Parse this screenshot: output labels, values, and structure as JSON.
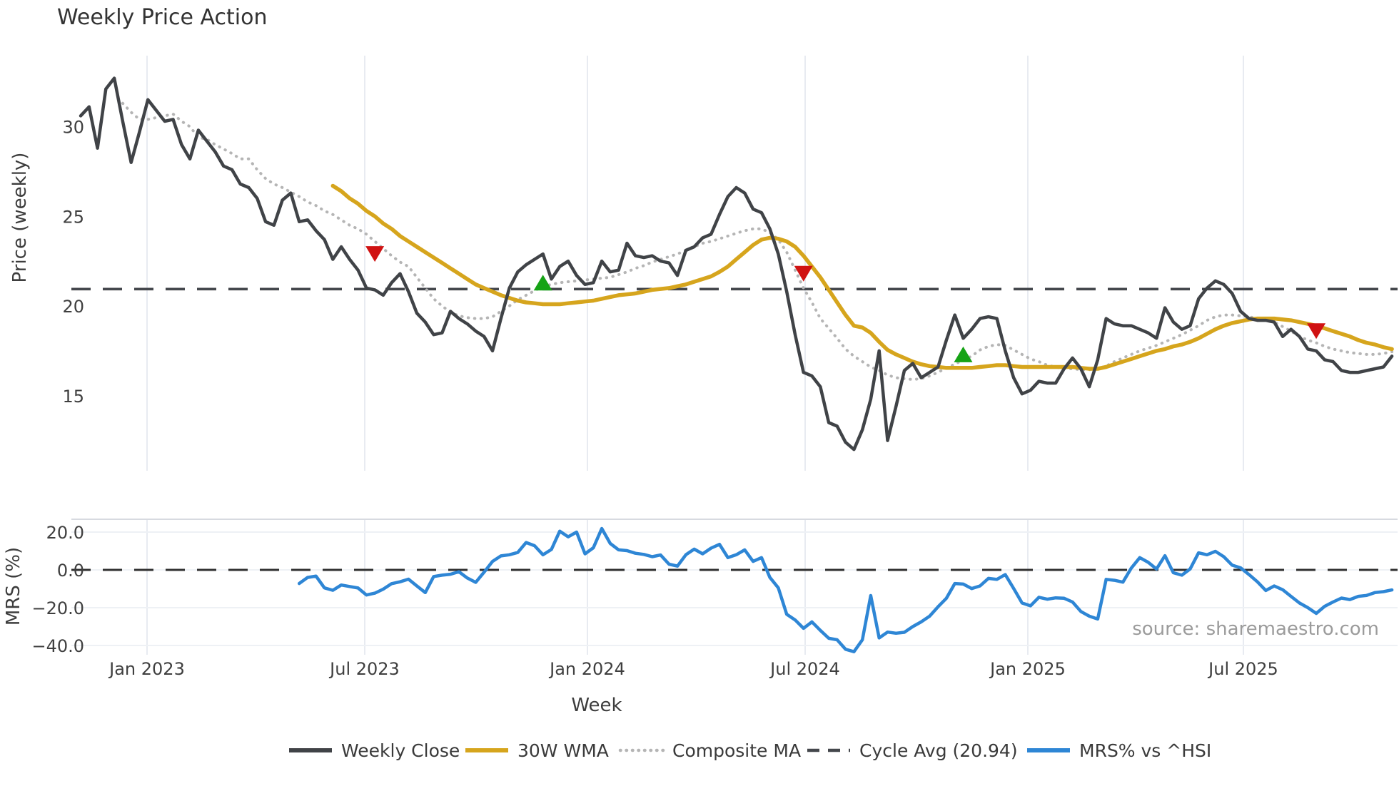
{
  "title": "Weekly Price Action",
  "source": "source: sharemaestro.com",
  "axes": {
    "x_label": "Week",
    "x_tick_labels": [
      "Jan 2023",
      "Jul 2023",
      "Jan 2024",
      "Jul 2024",
      "Jan 2025",
      "Jul 2025"
    ],
    "price_label": "Price (weekly)",
    "price_tick_labels": [
      "30",
      "25",
      "20",
      "15"
    ],
    "price_tick_values": [
      30,
      25,
      20,
      15
    ],
    "mrs_label": "MRS (%)",
    "mrs_tick_labels": [
      "20.0",
      "0.0",
      "−20.0",
      "−40.0"
    ],
    "mrs_tick_values": [
      20,
      0,
      -20,
      -40
    ]
  },
  "colors": {
    "close": "#404347",
    "wma": "#d6a51d",
    "composite": "#b5b5b5",
    "cycle": "#44474c",
    "mrs": "#2e86d5",
    "zero_dash": "#303030",
    "sell": "#d01212",
    "buy": "#16a316",
    "grid": "#e8ebf1",
    "grid_h": "#eef1f5",
    "panel_border": "#d7dae0",
    "tick_text": "#3f3f3f",
    "title_text": "#333333",
    "source_text": "#9b9b9b"
  },
  "legend": [
    {
      "label": "Weekly Close",
      "style": "solid",
      "color": "#404347"
    },
    {
      "label": "30W WMA",
      "style": "solid",
      "color": "#d6a51d"
    },
    {
      "label": "Composite MA",
      "style": "dotted",
      "color": "#b5b5b5"
    },
    {
      "label": "Cycle Avg (20.94)",
      "style": "dashed",
      "color": "#44474c"
    },
    {
      "label": "MRS% vs ^HSI",
      "style": "solid",
      "color": "#2e86d5"
    }
  ],
  "chart_data": {
    "type": "line",
    "x_unit": "week_index",
    "x_start": "Nov 2022",
    "x_tick_labels": [
      "Jan 2023",
      "Jul 2023",
      "Jan 2024",
      "Jul 2024",
      "Jan 2025",
      "Jul 2025"
    ],
    "price_panel": {
      "ylabel": "Price (weekly)",
      "ylim": [
        10.9,
        34.5
      ],
      "yticks": [
        30,
        25,
        20,
        15
      ],
      "cycle_avg": 20.94,
      "series": [
        {
          "name": "Weekly Close",
          "start_week": 0,
          "values": [
            30.6,
            31.1,
            28.8,
            32.1,
            32.7,
            30.3,
            28.0,
            29.7,
            31.5,
            30.9,
            30.3,
            30.4,
            29.0,
            28.2,
            29.8,
            29.2,
            28.6,
            27.8,
            27.6,
            26.8,
            26.6,
            26.0,
            24.7,
            24.5,
            25.9,
            26.3,
            24.7,
            24.8,
            24.2,
            23.7,
            22.6,
            23.3,
            22.6,
            22.0,
            21.0,
            20.9,
            20.6,
            21.3,
            21.8,
            20.8,
            19.6,
            19.1,
            18.4,
            18.5,
            19.7,
            19.3,
            19.0,
            18.6,
            18.3,
            17.5,
            19.3,
            21.0,
            21.9,
            22.3,
            22.6,
            22.9,
            21.5,
            22.2,
            22.5,
            21.7,
            21.2,
            21.3,
            22.5,
            21.9,
            22.0,
            23.5,
            22.8,
            22.7,
            22.8,
            22.5,
            22.4,
            21.7,
            23.1,
            23.3,
            23.8,
            24.0,
            25.1,
            26.1,
            26.6,
            26.3,
            25.4,
            25.2,
            24.3,
            22.9,
            20.8,
            18.4,
            16.3,
            16.1,
            15.5,
            13.5,
            13.3,
            12.4,
            12.0,
            13.1,
            14.8,
            17.5,
            12.5,
            14.4,
            16.4,
            16.8,
            16.0,
            16.3,
            16.6,
            18.1,
            19.5,
            18.2,
            18.7,
            19.3,
            19.4,
            19.3,
            17.5,
            16.0,
            15.1,
            15.3,
            15.8,
            15.7,
            15.7,
            16.5,
            17.1,
            16.5,
            15.5,
            17.0,
            19.3,
            19.0,
            18.9,
            18.9,
            18.7,
            18.5,
            18.2,
            19.9,
            19.1,
            18.7,
            18.9,
            20.4,
            21.0,
            21.4,
            21.2,
            20.7,
            19.7,
            19.3,
            19.2,
            19.2,
            19.1,
            18.3,
            18.7,
            18.3,
            17.6,
            17.5,
            17.0,
            16.9,
            16.4,
            16.3,
            16.3,
            16.4,
            16.5,
            16.6,
            17.2
          ]
        },
        {
          "name": "30W WMA",
          "start_week": 30,
          "values": [
            26.7,
            26.4,
            26.0,
            25.7,
            25.3,
            25.0,
            24.6,
            24.3,
            23.9,
            23.6,
            23.3,
            23.0,
            22.7,
            22.4,
            22.1,
            21.8,
            21.5,
            21.2,
            21.0,
            20.8,
            20.6,
            20.45,
            20.3,
            20.2,
            20.15,
            20.1,
            20.1,
            20.1,
            20.15,
            20.2,
            20.25,
            20.3,
            20.4,
            20.5,
            20.6,
            20.65,
            20.7,
            20.8,
            20.9,
            20.95,
            21.0,
            21.1,
            21.2,
            21.35,
            21.5,
            21.65,
            21.9,
            22.2,
            22.6,
            23.0,
            23.4,
            23.7,
            23.8,
            23.75,
            23.6,
            23.3,
            22.8,
            22.2,
            21.6,
            20.9,
            20.2,
            19.5,
            18.9,
            18.8,
            18.5,
            18.0,
            17.55,
            17.3,
            17.1,
            16.9,
            16.75,
            16.65,
            16.6,
            16.55,
            16.55,
            16.55,
            16.55,
            16.6,
            16.65,
            16.7,
            16.7,
            16.65,
            16.6,
            16.6,
            16.6,
            16.6,
            16.6,
            16.6,
            16.6,
            16.55,
            16.5,
            16.5,
            16.6,
            16.75,
            16.9,
            17.05,
            17.2,
            17.35,
            17.5,
            17.6,
            17.75,
            17.85,
            18.0,
            18.2,
            18.45,
            18.7,
            18.9,
            19.05,
            19.15,
            19.25,
            19.3,
            19.3,
            19.3,
            19.25,
            19.2,
            19.1,
            19.0,
            18.9,
            18.75,
            18.6,
            18.45,
            18.3,
            18.1,
            17.95,
            17.85,
            17.7,
            17.6
          ]
        },
        {
          "name": "Composite MA",
          "start_week": 5,
          "values": [
            31.3,
            30.8,
            30.4,
            30.4,
            30.5,
            30.6,
            30.7,
            30.3,
            30.0,
            29.4,
            29.3,
            29.0,
            28.75,
            28.5,
            28.2,
            28.2,
            27.6,
            27.1,
            26.8,
            26.6,
            26.35,
            26.1,
            25.8,
            25.6,
            25.3,
            25.1,
            24.8,
            24.5,
            24.3,
            24.0,
            23.6,
            23.2,
            22.8,
            22.45,
            22.2,
            21.6,
            21.0,
            20.4,
            20.0,
            19.65,
            19.45,
            19.35,
            19.3,
            19.3,
            19.4,
            19.7,
            20.0,
            20.35,
            20.6,
            20.85,
            21.1,
            21.2,
            21.3,
            21.35,
            21.4,
            21.45,
            21.5,
            21.55,
            21.6,
            21.75,
            21.9,
            22.1,
            22.25,
            22.45,
            22.6,
            22.75,
            22.9,
            23.1,
            23.3,
            23.5,
            23.6,
            23.75,
            23.9,
            24.05,
            24.2,
            24.3,
            24.3,
            24.1,
            23.7,
            23.0,
            22.0,
            21.0,
            20.2,
            19.3,
            18.75,
            18.2,
            17.6,
            17.2,
            16.9,
            16.6,
            16.4,
            16.15,
            16.0,
            15.95,
            15.9,
            15.95,
            16.1,
            16.3,
            16.55,
            16.75,
            17.0,
            17.2,
            17.55,
            17.75,
            17.85,
            17.8,
            17.55,
            17.3,
            17.05,
            16.9,
            16.7,
            16.6,
            16.5,
            16.5,
            16.45,
            16.45,
            16.5,
            16.65,
            16.9,
            17.1,
            17.3,
            17.5,
            17.65,
            17.8,
            18.0,
            18.2,
            18.4,
            18.65,
            18.9,
            19.2,
            19.4,
            19.5,
            19.5,
            19.45,
            19.4,
            19.3,
            19.25,
            19.1,
            18.85,
            18.6,
            18.3,
            18.1,
            17.95,
            17.75,
            17.6,
            17.5,
            17.4,
            17.35,
            17.3,
            17.3,
            17.35,
            17.45
          ]
        }
      ],
      "markers": {
        "sell": [
          {
            "week": 35,
            "price": 22.9
          },
          {
            "week": 86,
            "price": 21.8
          },
          {
            "week": 147,
            "price": 18.6
          }
        ],
        "buy": [
          {
            "week": 55,
            "price": 21.3
          },
          {
            "week": 105,
            "price": 17.3
          }
        ]
      }
    },
    "mrs_panel": {
      "ylabel": "MRS (%)",
      "ylim": [
        -48,
        27
      ],
      "yticks": [
        20,
        0,
        -20,
        -40
      ],
      "zero_line": 0,
      "series": [
        {
          "name": "MRS% vs ^HSI",
          "start_week": 26,
          "values": [
            -7.2,
            -4.0,
            -3.3,
            -9.5,
            -10.8,
            -8.0,
            -8.8,
            -9.6,
            -13.3,
            -12.3,
            -10.2,
            -7.3,
            -6.3,
            -4.9,
            -8.5,
            -12.0,
            -3.5,
            -2.8,
            -2.3,
            -1.0,
            -4.3,
            -6.6,
            -1.2,
            4.5,
            7.4,
            8.0,
            9.2,
            14.5,
            12.8,
            8.0,
            10.8,
            20.5,
            17.5,
            20.0,
            8.5,
            11.7,
            21.9,
            14.0,
            10.6,
            10.2,
            8.8,
            8.2,
            7.0,
            7.9,
            3.0,
            2.0,
            8.0,
            11.0,
            8.5,
            11.5,
            13.5,
            6.5,
            8.0,
            10.6,
            4.5,
            6.5,
            -4.0,
            -9.5,
            -23.5,
            -26.5,
            -30.9,
            -27.5,
            -32.0,
            -36.2,
            -37.0,
            -42.0,
            -43.3,
            -37.0,
            -13.6,
            -36.0,
            -32.9,
            -33.5,
            -33.0,
            -30.0,
            -27.5,
            -24.5,
            -19.5,
            -15.0,
            -7.2,
            -7.5,
            -9.9,
            -8.5,
            -4.5,
            -5.0,
            -2.5,
            -9.8,
            -17.5,
            -19.0,
            -14.5,
            -15.5,
            -14.8,
            -15.0,
            -17.0,
            -22.0,
            -24.5,
            -26.0,
            -5.0,
            -5.5,
            -6.5,
            1.0,
            6.5,
            4.0,
            0.5,
            7.5,
            -1.5,
            -2.8,
            0.5,
            9.0,
            8.0,
            9.8,
            7.0,
            2.5,
            1.1,
            -2.5,
            -6.3,
            -10.9,
            -8.5,
            -10.5,
            -14.0,
            -17.5,
            -20.0,
            -23.0,
            -19.3,
            -17.0,
            -14.9,
            -15.7,
            -14.0,
            -13.5,
            -12.0,
            -11.5,
            -10.6
          ]
        }
      ]
    }
  }
}
